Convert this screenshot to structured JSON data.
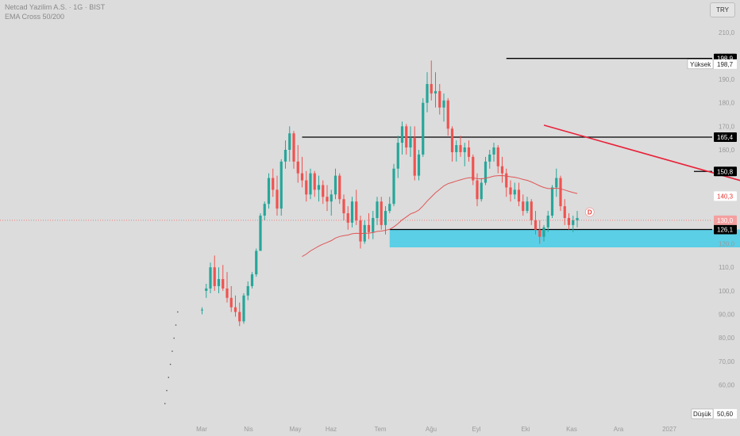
{
  "header": {
    "title": "Netcad Yazilim A.S. · 1G · BIST",
    "indicator": "EMA Cross 50/200"
  },
  "currency": "TRY",
  "colors": {
    "background": "#dcdcdc",
    "up": "#26a69a",
    "down": "#ef5350",
    "ema": "#e05555",
    "trendline": "#e8233a",
    "support_zone": "#5bcfe6",
    "level_line": "#000000",
    "price_line": "#f08080"
  },
  "markers": {
    "high_label": "Yüksek",
    "high_value": "198,7",
    "low_label": "Düşük",
    "low_value": "50,60",
    "event_badge": "D"
  },
  "chart_data": {
    "type": "candlestick",
    "x_labels": [
      "Mar",
      "Nis",
      "May",
      "Haz",
      "Tem",
      "Ağu",
      "Eyl",
      "Eki",
      "Kas",
      "Ara",
      "2027"
    ],
    "y_ticks": [
      50,
      60,
      70,
      80,
      90,
      100,
      110,
      120,
      130,
      140,
      150,
      160,
      170,
      180,
      190,
      200,
      210
    ],
    "y_tick_labels": [
      "",
      "60,00",
      "70,00",
      "80,00",
      "90,00",
      "100,0",
      "110,0",
      "120,0",
      "",
      "",
      "",
      "160,0",
      "170,0",
      "180,0",
      "190,0",
      "200,0",
      "210,0"
    ],
    "ylim": [
      48,
      216
    ],
    "horizontal_levels": [
      {
        "value": 198.9,
        "label": "198,9",
        "from_bar": 79
      },
      {
        "value": 165.4,
        "label": "165,4",
        "from_bar": 30
      },
      {
        "value": 150.8,
        "label": "150,8",
        "from_bar": 124
      },
      {
        "value": 126.1,
        "label": "126,1",
        "from_bar": 51
      }
    ],
    "current_price": {
      "value": 130.0,
      "label": "130,0"
    },
    "ema_last": {
      "value": 140.3,
      "label": "140,3"
    },
    "support_zone": {
      "low": 118.5,
      "high": 126.1,
      "from_bar": 51,
      "to_bar": 189
    },
    "trendline": {
      "from_bar": 88,
      "from_value": 170.5,
      "to_bar": 161,
      "to_value": 134.0
    },
    "dotted_tail": {
      "from_bar": 0,
      "to_bar": 6,
      "from_value": 52,
      "to_value": 91
    },
    "candles": [
      {
        "o": 92,
        "h": 93,
        "l": 90,
        "c": 92
      },
      {
        "o": 100,
        "h": 103,
        "l": 97,
        "c": 101
      },
      {
        "o": 101,
        "h": 112,
        "l": 99,
        "c": 110
      },
      {
        "o": 110,
        "h": 115,
        "l": 100,
        "c": 102
      },
      {
        "o": 102,
        "h": 110,
        "l": 99,
        "c": 105
      },
      {
        "o": 105,
        "h": 111,
        "l": 100,
        "c": 101
      },
      {
        "o": 101,
        "h": 108,
        "l": 95,
        "c": 97
      },
      {
        "o": 97,
        "h": 102,
        "l": 91,
        "c": 93
      },
      {
        "o": 93,
        "h": 98,
        "l": 89,
        "c": 91
      },
      {
        "o": 91,
        "h": 95,
        "l": 85,
        "c": 87
      },
      {
        "o": 87,
        "h": 99,
        "l": 86,
        "c": 98
      },
      {
        "o": 98,
        "h": 104,
        "l": 96,
        "c": 102
      },
      {
        "o": 102,
        "h": 108,
        "l": 101,
        "c": 107
      },
      {
        "o": 107,
        "h": 118,
        "l": 106,
        "c": 117
      },
      {
        "o": 117,
        "h": 133,
        "l": 117,
        "c": 132
      },
      {
        "o": 132,
        "h": 138,
        "l": 130,
        "c": 137
      },
      {
        "o": 137,
        "h": 150,
        "l": 135,
        "c": 148
      },
      {
        "o": 148,
        "h": 152,
        "l": 140,
        "c": 143
      },
      {
        "o": 143,
        "h": 149,
        "l": 132,
        "c": 135
      },
      {
        "o": 135,
        "h": 156,
        "l": 132,
        "c": 155
      },
      {
        "o": 155,
        "h": 164,
        "l": 152,
        "c": 160
      },
      {
        "o": 160,
        "h": 170,
        "l": 155,
        "c": 167
      },
      {
        "o": 167,
        "h": 168,
        "l": 152,
        "c": 155
      },
      {
        "o": 155,
        "h": 162,
        "l": 146,
        "c": 150
      },
      {
        "o": 150,
        "h": 157,
        "l": 144,
        "c": 147
      },
      {
        "o": 147,
        "h": 151,
        "l": 138,
        "c": 141
      },
      {
        "o": 141,
        "h": 152,
        "l": 139,
        "c": 150
      },
      {
        "o": 150,
        "h": 151,
        "l": 140,
        "c": 143
      },
      {
        "o": 143,
        "h": 149,
        "l": 138,
        "c": 145
      },
      {
        "o": 145,
        "h": 147,
        "l": 137,
        "c": 140
      },
      {
        "o": 140,
        "h": 145,
        "l": 134,
        "c": 138
      },
      {
        "o": 138,
        "h": 143,
        "l": 132,
        "c": 141
      },
      {
        "o": 141,
        "h": 152,
        "l": 139,
        "c": 149
      },
      {
        "o": 149,
        "h": 150,
        "l": 137,
        "c": 139
      },
      {
        "o": 139,
        "h": 141,
        "l": 130,
        "c": 133
      },
      {
        "o": 133,
        "h": 136,
        "l": 126,
        "c": 129
      },
      {
        "o": 129,
        "h": 140,
        "l": 127,
        "c": 138
      },
      {
        "o": 138,
        "h": 143,
        "l": 128,
        "c": 130
      },
      {
        "o": 130,
        "h": 132,
        "l": 118,
        "c": 121
      },
      {
        "o": 121,
        "h": 130,
        "l": 120,
        "c": 128
      },
      {
        "o": 128,
        "h": 133,
        "l": 122,
        "c": 125
      },
      {
        "o": 125,
        "h": 134,
        "l": 122,
        "c": 131
      },
      {
        "o": 131,
        "h": 140,
        "l": 128,
        "c": 138
      },
      {
        "o": 138,
        "h": 140,
        "l": 126,
        "c": 128
      },
      {
        "o": 128,
        "h": 136,
        "l": 124,
        "c": 134
      },
      {
        "o": 134,
        "h": 140,
        "l": 133,
        "c": 137
      },
      {
        "o": 137,
        "h": 154,
        "l": 136,
        "c": 152
      },
      {
        "o": 152,
        "h": 166,
        "l": 148,
        "c": 163
      },
      {
        "o": 163,
        "h": 172,
        "l": 158,
        "c": 170
      },
      {
        "o": 170,
        "h": 171,
        "l": 158,
        "c": 161
      },
      {
        "o": 161,
        "h": 170,
        "l": 157,
        "c": 165
      },
      {
        "o": 165,
        "h": 170,
        "l": 147,
        "c": 149
      },
      {
        "o": 149,
        "h": 160,
        "l": 147,
        "c": 158
      },
      {
        "o": 158,
        "h": 182,
        "l": 157,
        "c": 180
      },
      {
        "o": 180,
        "h": 193,
        "l": 176,
        "c": 188
      },
      {
        "o": 188,
        "h": 198,
        "l": 181,
        "c": 184
      },
      {
        "o": 184,
        "h": 193,
        "l": 178,
        "c": 185
      },
      {
        "o": 185,
        "h": 188,
        "l": 175,
        "c": 178
      },
      {
        "o": 178,
        "h": 184,
        "l": 172,
        "c": 181
      },
      {
        "o": 181,
        "h": 182,
        "l": 166,
        "c": 169
      },
      {
        "o": 169,
        "h": 170,
        "l": 155,
        "c": 159
      },
      {
        "o": 159,
        "h": 164,
        "l": 155,
        "c": 162
      },
      {
        "o": 162,
        "h": 166,
        "l": 157,
        "c": 159
      },
      {
        "o": 159,
        "h": 163,
        "l": 153,
        "c": 161
      },
      {
        "o": 161,
        "h": 164,
        "l": 155,
        "c": 157
      },
      {
        "o": 157,
        "h": 158,
        "l": 145,
        "c": 147
      },
      {
        "o": 147,
        "h": 150,
        "l": 136,
        "c": 139
      },
      {
        "o": 139,
        "h": 148,
        "l": 138,
        "c": 146
      },
      {
        "o": 146,
        "h": 157,
        "l": 145,
        "c": 155
      },
      {
        "o": 155,
        "h": 160,
        "l": 152,
        "c": 158
      },
      {
        "o": 158,
        "h": 163,
        "l": 155,
        "c": 161
      },
      {
        "o": 161,
        "h": 162,
        "l": 150,
        "c": 153
      },
      {
        "o": 153,
        "h": 157,
        "l": 146,
        "c": 150
      },
      {
        "o": 150,
        "h": 152,
        "l": 140,
        "c": 144
      },
      {
        "o": 144,
        "h": 147,
        "l": 138,
        "c": 141
      },
      {
        "o": 141,
        "h": 146,
        "l": 139,
        "c": 143
      },
      {
        "o": 143,
        "h": 146,
        "l": 136,
        "c": 138
      },
      {
        "o": 138,
        "h": 141,
        "l": 132,
        "c": 134
      },
      {
        "o": 134,
        "h": 140,
        "l": 133,
        "c": 138
      },
      {
        "o": 138,
        "h": 139,
        "l": 128,
        "c": 130
      },
      {
        "o": 130,
        "h": 134,
        "l": 124,
        "c": 126
      },
      {
        "o": 126,
        "h": 130,
        "l": 120,
        "c": 123
      },
      {
        "o": 123,
        "h": 128,
        "l": 121,
        "c": 127
      },
      {
        "o": 127,
        "h": 134,
        "l": 125,
        "c": 132
      },
      {
        "o": 132,
        "h": 145,
        "l": 131,
        "c": 144
      },
      {
        "o": 144,
        "h": 152,
        "l": 140,
        "c": 148
      },
      {
        "o": 148,
        "h": 149,
        "l": 134,
        "c": 136
      },
      {
        "o": 136,
        "h": 139,
        "l": 128,
        "c": 131
      },
      {
        "o": 131,
        "h": 133,
        "l": 126,
        "c": 128
      },
      {
        "o": 128,
        "h": 132,
        "l": 125,
        "c": 130
      },
      {
        "o": 130,
        "h": 134,
        "l": 127,
        "c": 131
      }
    ]
  }
}
